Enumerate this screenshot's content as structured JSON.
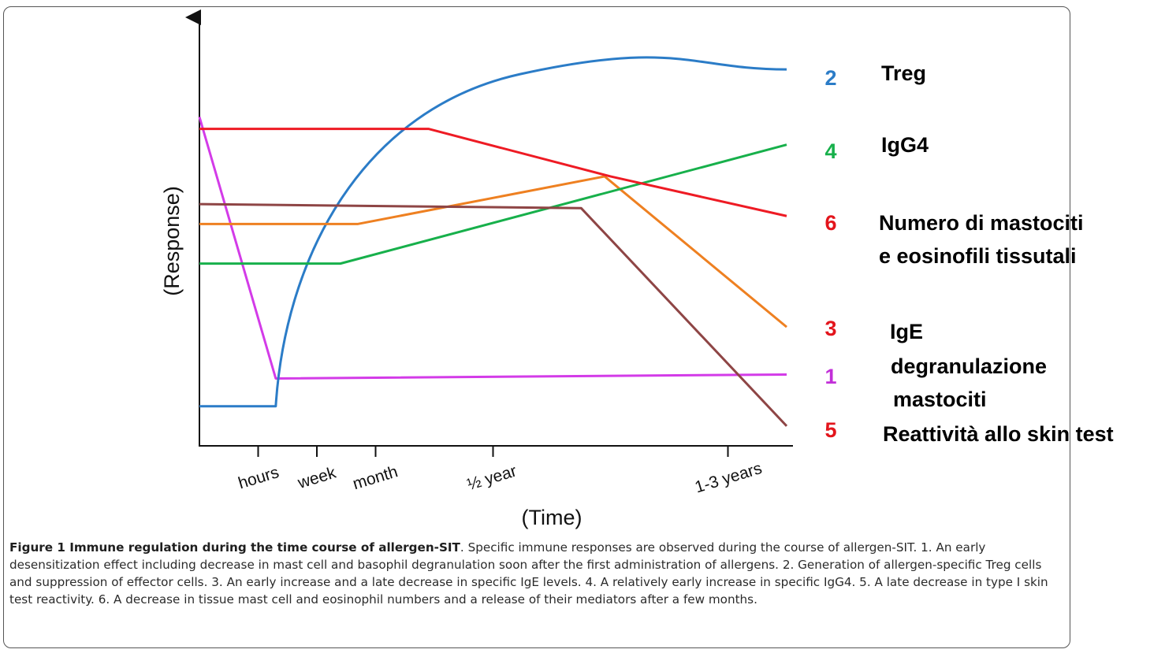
{
  "chart_data": {
    "type": "line",
    "xlabel": "(Time)",
    "ylabel": "(Response)",
    "x_ticks": [
      "hours",
      "week",
      "month",
      "½ year",
      "1-3 years"
    ],
    "series": [
      {
        "name": "1",
        "color": "#d33be8",
        "points": [
          [
            0,
            0.83
          ],
          [
            1.3,
            0.17
          ],
          [
            10,
            0.18
          ]
        ]
      },
      {
        "name": "2",
        "color": "#2b7cc7",
        "points": [
          [
            0,
            0.1
          ],
          [
            1.3,
            0.1
          ],
          "recovery-curve",
          [
            10,
            0.95
          ]
        ]
      },
      {
        "name": "3",
        "color": "#ee8021",
        "points": [
          [
            0,
            0.56
          ],
          [
            2.7,
            0.56
          ],
          [
            6.9,
            0.68
          ],
          [
            10,
            0.3
          ]
        ]
      },
      {
        "name": "4",
        "color": "#17b04b",
        "points": [
          [
            0,
            0.46
          ],
          [
            2.4,
            0.46
          ],
          [
            10,
            0.76
          ]
        ]
      },
      {
        "name": "5",
        "color": "#8e4545",
        "points": [
          [
            0,
            0.61
          ],
          [
            6.5,
            0.6
          ],
          [
            10,
            0.05
          ]
        ]
      },
      {
        "name": "6",
        "color": "#ee1b24",
        "points": [
          [
            0,
            0.8
          ],
          [
            3.9,
            0.8
          ],
          [
            7,
            0.68
          ],
          [
            10,
            0.58
          ]
        ]
      }
    ],
    "annotations": [
      {
        "series": "2",
        "label": "Treg"
      },
      {
        "series": "4",
        "label": "IgG4"
      },
      {
        "series": "6",
        "label": "Numero di mastociti\ne eosinofili tissutali"
      },
      {
        "series": "3",
        "label": "IgE"
      },
      {
        "series": "1",
        "label": "degranulazione\nmastociti"
      },
      {
        "series": "5",
        "label": "Reattività allo skin test"
      }
    ]
  },
  "caption": {
    "title": "Figure 1 Immune regulation during the time course of allergen-SIT",
    "text": ". Specific immune responses are observed during the course of allergen-SIT. 1. An early desensitization effect including decrease in mast cell and basophil degranulation soon after the first administration of allergens. 2. Generation of allergen-specific Treg cells and suppression of effector cells. 3. An early increase and a late decrease in specific IgE levels. 4. A relatively early increase in specific IgG4. 5. A late decrease in type I skin test reactivity. 6. A decrease in tissue mast cell and eosinophil numbers and a release of their mediators after a few months."
  }
}
